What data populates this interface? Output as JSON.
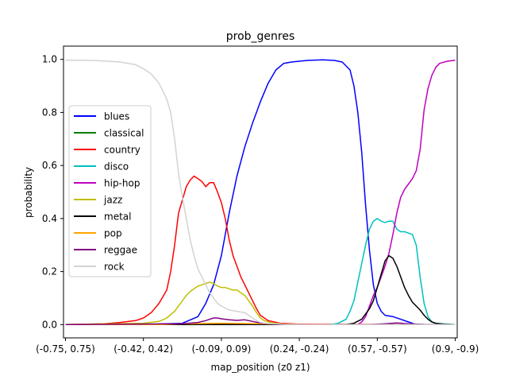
{
  "chart_data": {
    "type": "line",
    "title": "prob_genres",
    "xlabel": "map_position (z0 z1)",
    "ylabel": "probability",
    "xlim": [
      -0.5,
      100.5
    ],
    "ylim": [
      -0.05,
      1.05
    ],
    "x_ticks": [
      {
        "pos": 0,
        "label": "(-0.75, 0.75)"
      },
      {
        "pos": 20,
        "label": "(-0.42, 0.42)"
      },
      {
        "pos": 40,
        "label": "(-0.09, 0.09)"
      },
      {
        "pos": 60,
        "label": "(0.24, -0.24)"
      },
      {
        "pos": 80,
        "label": "(0.57, -0.57)"
      },
      {
        "pos": 100,
        "label": "(0.9, -0.9)"
      }
    ],
    "y_ticks": [
      0.0,
      0.2,
      0.4,
      0.6,
      0.8,
      1.0
    ],
    "y_tick_labels": [
      "0.0",
      "0.2",
      "0.4",
      "0.6",
      "0.8",
      "1.0"
    ],
    "legend_position": "center-left",
    "grid": false,
    "series": [
      {
        "name": "blues",
        "color": "#0000ff",
        "points": [
          [
            0,
            0
          ],
          [
            20,
            0
          ],
          [
            30,
            0.005
          ],
          [
            34,
            0.03
          ],
          [
            36,
            0.08
          ],
          [
            38,
            0.15
          ],
          [
            40,
            0.26
          ],
          [
            42,
            0.42
          ],
          [
            44,
            0.56
          ],
          [
            46,
            0.67
          ],
          [
            48,
            0.76
          ],
          [
            50,
            0.84
          ],
          [
            52,
            0.91
          ],
          [
            54,
            0.96
          ],
          [
            56,
            0.985
          ],
          [
            58,
            0.99
          ],
          [
            62,
            0.996
          ],
          [
            66,
            0.998
          ],
          [
            69,
            0.996
          ],
          [
            71,
            0.99
          ],
          [
            73,
            0.96
          ],
          [
            74,
            0.9
          ],
          [
            75,
            0.8
          ],
          [
            76,
            0.65
          ],
          [
            77,
            0.45
          ],
          [
            78,
            0.28
          ],
          [
            79,
            0.15
          ],
          [
            80,
            0.08
          ],
          [
            81,
            0.05
          ],
          [
            82,
            0.035
          ],
          [
            84,
            0.03
          ],
          [
            86,
            0.02
          ],
          [
            88,
            0.01
          ],
          [
            90,
            0
          ],
          [
            100,
            0
          ]
        ]
      },
      {
        "name": "classical",
        "color": "#008000",
        "points": [
          [
            0,
            0
          ],
          [
            100,
            0
          ]
        ]
      },
      {
        "name": "country",
        "color": "#ff0000",
        "points": [
          [
            0,
            0
          ],
          [
            10,
            0.003
          ],
          [
            14,
            0.008
          ],
          [
            18,
            0.015
          ],
          [
            20,
            0.025
          ],
          [
            22,
            0.045
          ],
          [
            24,
            0.08
          ],
          [
            26,
            0.13
          ],
          [
            27,
            0.2
          ],
          [
            28,
            0.3
          ],
          [
            29,
            0.42
          ],
          [
            30,
            0.47
          ],
          [
            31,
            0.52
          ],
          [
            32,
            0.545
          ],
          [
            33,
            0.56
          ],
          [
            34,
            0.55
          ],
          [
            35,
            0.54
          ],
          [
            36,
            0.52
          ],
          [
            37,
            0.535
          ],
          [
            38,
            0.535
          ],
          [
            39,
            0.5
          ],
          [
            40,
            0.46
          ],
          [
            41,
            0.4
          ],
          [
            42,
            0.32
          ],
          [
            43,
            0.26
          ],
          [
            44,
            0.22
          ],
          [
            45,
            0.18
          ],
          [
            46,
            0.15
          ],
          [
            47,
            0.12
          ],
          [
            48,
            0.09
          ],
          [
            49,
            0.06
          ],
          [
            50,
            0.035
          ],
          [
            52,
            0.015
          ],
          [
            55,
            0.005
          ],
          [
            60,
            0.002
          ],
          [
            100,
            0
          ]
        ]
      },
      {
        "name": "disco",
        "color": "#00bfbf",
        "points": [
          [
            0,
            0
          ],
          [
            68,
            0
          ],
          [
            70,
            0.005
          ],
          [
            72,
            0.02
          ],
          [
            73,
            0.05
          ],
          [
            74,
            0.09
          ],
          [
            75,
            0.16
          ],
          [
            76,
            0.23
          ],
          [
            77,
            0.3
          ],
          [
            78,
            0.36
          ],
          [
            79,
            0.39
          ],
          [
            80,
            0.4
          ],
          [
            81,
            0.39
          ],
          [
            82,
            0.385
          ],
          [
            83,
            0.39
          ],
          [
            84,
            0.39
          ],
          [
            85,
            0.36
          ],
          [
            86,
            0.35
          ],
          [
            87,
            0.35
          ],
          [
            88,
            0.345
          ],
          [
            89,
            0.34
          ],
          [
            90,
            0.3
          ],
          [
            91,
            0.18
          ],
          [
            92,
            0.08
          ],
          [
            93,
            0.03
          ],
          [
            94,
            0.01
          ],
          [
            95,
            0.005
          ],
          [
            100,
            0
          ]
        ]
      },
      {
        "name": "hip-hop",
        "color": "#bf00bf",
        "points": [
          [
            0,
            0
          ],
          [
            75,
            0
          ],
          [
            76,
            0.01
          ],
          [
            77,
            0.03
          ],
          [
            78,
            0.07
          ],
          [
            79,
            0.11
          ],
          [
            80,
            0.14
          ],
          [
            81,
            0.18
          ],
          [
            82,
            0.22
          ],
          [
            83,
            0.27
          ],
          [
            84,
            0.34
          ],
          [
            85,
            0.42
          ],
          [
            86,
            0.48
          ],
          [
            87,
            0.51
          ],
          [
            88,
            0.53
          ],
          [
            89,
            0.55
          ],
          [
            90,
            0.58
          ],
          [
            91,
            0.66
          ],
          [
            92,
            0.81
          ],
          [
            93,
            0.89
          ],
          [
            94,
            0.94
          ],
          [
            95,
            0.97
          ],
          [
            96,
            0.985
          ],
          [
            98,
            0.993
          ],
          [
            100,
            0.997
          ]
        ]
      },
      {
        "name": "jazz",
        "color": "#bfbf00",
        "points": [
          [
            0,
            0
          ],
          [
            20,
            0.005
          ],
          [
            24,
            0.012
          ],
          [
            26,
            0.025
          ],
          [
            28,
            0.05
          ],
          [
            30,
            0.09
          ],
          [
            31,
            0.11
          ],
          [
            32,
            0.125
          ],
          [
            33,
            0.135
          ],
          [
            34,
            0.145
          ],
          [
            35,
            0.15
          ],
          [
            36,
            0.155
          ],
          [
            37,
            0.16
          ],
          [
            38,
            0.155
          ],
          [
            39,
            0.145
          ],
          [
            40,
            0.14
          ],
          [
            41,
            0.14
          ],
          [
            42,
            0.135
          ],
          [
            43,
            0.13
          ],
          [
            44,
            0.13
          ],
          [
            45,
            0.12
          ],
          [
            46,
            0.11
          ],
          [
            47,
            0.09
          ],
          [
            48,
            0.07
          ],
          [
            49,
            0.045
          ],
          [
            50,
            0.025
          ],
          [
            51,
            0.015
          ],
          [
            53,
            0.006
          ],
          [
            56,
            0.002
          ],
          [
            60,
            0
          ],
          [
            100,
            0
          ]
        ]
      },
      {
        "name": "metal",
        "color": "#000000",
        "points": [
          [
            0,
            0
          ],
          [
            72,
            0
          ],
          [
            74,
            0.005
          ],
          [
            76,
            0.02
          ],
          [
            77,
            0.04
          ],
          [
            78,
            0.06
          ],
          [
            79,
            0.09
          ],
          [
            80,
            0.14
          ],
          [
            81,
            0.19
          ],
          [
            82,
            0.24
          ],
          [
            83,
            0.26
          ],
          [
            84,
            0.25
          ],
          [
            85,
            0.22
          ],
          [
            86,
            0.18
          ],
          [
            87,
            0.14
          ],
          [
            88,
            0.11
          ],
          [
            89,
            0.085
          ],
          [
            90,
            0.07
          ],
          [
            91,
            0.055
          ],
          [
            92,
            0.035
          ],
          [
            93,
            0.02
          ],
          [
            94,
            0.01
          ],
          [
            95,
            0.005
          ],
          [
            97,
            0.002
          ],
          [
            100,
            0
          ]
        ]
      },
      {
        "name": "pop",
        "color": "#ffa500",
        "points": [
          [
            0,
            0
          ],
          [
            25,
            0
          ],
          [
            30,
            0.003
          ],
          [
            40,
            0.005
          ],
          [
            50,
            0.003
          ],
          [
            60,
            0
          ],
          [
            100,
            0
          ]
        ]
      },
      {
        "name": "reggae",
        "color": "#800080",
        "points": [
          [
            0,
            0
          ],
          [
            30,
            0.003
          ],
          [
            34,
            0.008
          ],
          [
            36,
            0.015
          ],
          [
            37,
            0.02
          ],
          [
            38,
            0.025
          ],
          [
            39,
            0.025
          ],
          [
            40,
            0.022
          ],
          [
            41,
            0.02
          ],
          [
            42,
            0.018
          ],
          [
            44,
            0.016
          ],
          [
            46,
            0.018
          ],
          [
            48,
            0.012
          ],
          [
            50,
            0.006
          ],
          [
            52,
            0.003
          ],
          [
            55,
            0.001
          ],
          [
            60,
            0
          ],
          [
            78,
            0
          ],
          [
            82,
            0.003
          ],
          [
            85,
            0.006
          ],
          [
            88,
            0.003
          ],
          [
            92,
            0.001
          ],
          [
            100,
            0
          ]
        ]
      },
      {
        "name": "rock",
        "color": "#d3d3d3",
        "points": [
          [
            0,
            0.997
          ],
          [
            5,
            0.997
          ],
          [
            10,
            0.994
          ],
          [
            14,
            0.99
          ],
          [
            18,
            0.98
          ],
          [
            20,
            0.965
          ],
          [
            22,
            0.945
          ],
          [
            24,
            0.91
          ],
          [
            26,
            0.85
          ],
          [
            27,
            0.8
          ],
          [
            28,
            0.7
          ],
          [
            29,
            0.57
          ],
          [
            30,
            0.48
          ],
          [
            31,
            0.4
          ],
          [
            32,
            0.32
          ],
          [
            33,
            0.26
          ],
          [
            34,
            0.21
          ],
          [
            35,
            0.18
          ],
          [
            36,
            0.15
          ],
          [
            37,
            0.12
          ],
          [
            38,
            0.1
          ],
          [
            39,
            0.08
          ],
          [
            40,
            0.07
          ],
          [
            42,
            0.055
          ],
          [
            44,
            0.05
          ],
          [
            46,
            0.045
          ],
          [
            47,
            0.035
          ],
          [
            48,
            0.025
          ],
          [
            49,
            0.015
          ],
          [
            50,
            0.008
          ],
          [
            52,
            0.004
          ],
          [
            56,
            0.001
          ],
          [
            60,
            0
          ],
          [
            100,
            0
          ]
        ]
      }
    ]
  }
}
